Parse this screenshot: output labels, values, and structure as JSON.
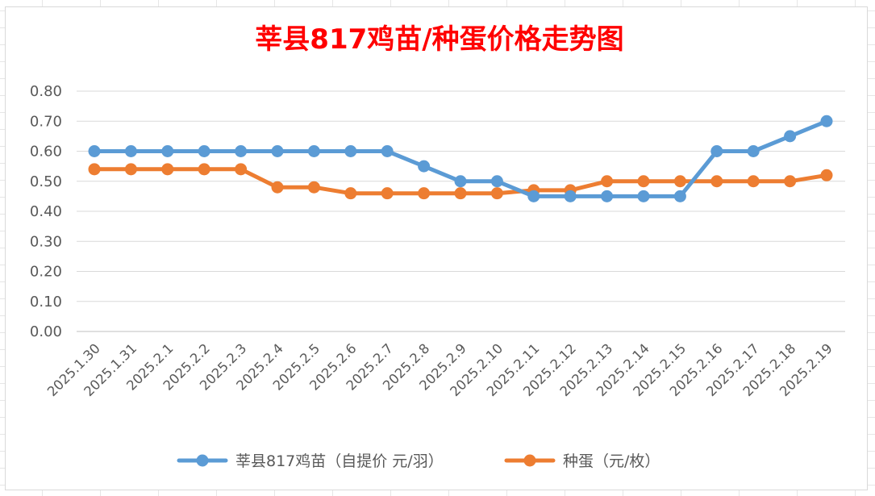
{
  "chart_data": {
    "type": "line",
    "title": "莘县817鸡苗/种蛋价格走势图",
    "xlabel": "",
    "ylabel": "",
    "categories": [
      "2025.1.30",
      "2025.1.31",
      "2025.2.1",
      "2025.2.2",
      "2025.2.3",
      "2025.2.4",
      "2025.2.5",
      "2025.2.6",
      "2025.2.7",
      "2025.2.8",
      "2025.2.9",
      "2025.2.10",
      "2025.2.11",
      "2025.2.12",
      "2025.2.13",
      "2025.2.14",
      "2025.2.15",
      "2025.2.16",
      "2025.2.17",
      "2025.2.18",
      "2025.2.19"
    ],
    "y_ticks": [
      "0.00",
      "0.10",
      "0.20",
      "0.30",
      "0.40",
      "0.50",
      "0.60",
      "0.70",
      "0.80"
    ],
    "ylim": [
      0,
      0.8
    ],
    "grid": true,
    "legend_position": "bottom",
    "series": [
      {
        "name": "莘县817鸡苗（自提价 元/羽）",
        "color": "#5b9bd5",
        "values": [
          0.6,
          0.6,
          0.6,
          0.6,
          0.6,
          0.6,
          0.6,
          0.6,
          0.6,
          0.55,
          0.5,
          0.5,
          0.45,
          0.45,
          0.45,
          0.45,
          0.45,
          0.6,
          0.6,
          0.65,
          0.7
        ]
      },
      {
        "name": "种蛋（元/枚）",
        "color": "#ed7d31",
        "values": [
          0.54,
          0.54,
          0.54,
          0.54,
          0.54,
          0.48,
          0.48,
          0.46,
          0.46,
          0.46,
          0.46,
          0.46,
          0.47,
          0.47,
          0.5,
          0.5,
          0.5,
          0.5,
          0.5,
          0.5,
          0.52
        ]
      }
    ]
  }
}
